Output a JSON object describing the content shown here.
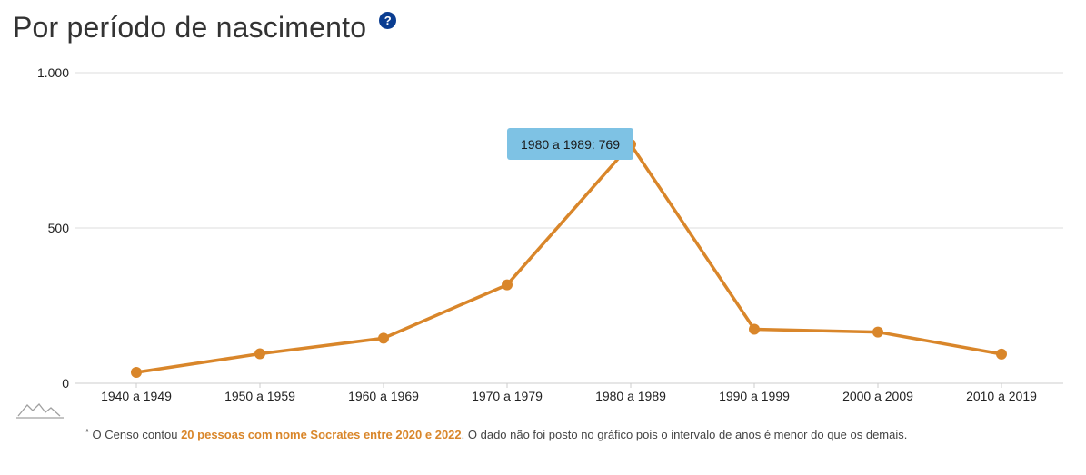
{
  "header": {
    "title": "Por período de nascimento",
    "help_icon_label": "?"
  },
  "colors": {
    "line": "#d9862a",
    "help_icon": "#0a3d91",
    "tooltip_bg": "#7ec2e4",
    "grid": "#dddddd",
    "axis": "#cccccc"
  },
  "chart_data": {
    "type": "line",
    "categories": [
      "1940 a 1949",
      "1950 a 1959",
      "1960 a 1969",
      "1970 a 1979",
      "1980 a 1989",
      "1990 a 1999",
      "2000 a 2009",
      "2010 a 2019"
    ],
    "series": [
      {
        "values": [
          35,
          95,
          145,
          317,
          769,
          174,
          165,
          94
        ]
      }
    ],
    "ylim": [
      0,
      1000
    ],
    "y_ticks": [
      {
        "value": 0,
        "label": "0"
      },
      {
        "value": 500,
        "label": "500"
      },
      {
        "value": 1000,
        "label": "1.000"
      }
    ],
    "grid": true,
    "tooltip": {
      "category_index": 4,
      "text": "1980 a 1989: 769"
    }
  },
  "footnote": {
    "star": "*",
    "prefix": " O Censo contou ",
    "highlight": "20 pessoas com nome Socrates entre 2020 e 2022",
    "suffix": ". O dado não foi posto no gráfico pois o intervalo de anos é menor do que os demais."
  }
}
